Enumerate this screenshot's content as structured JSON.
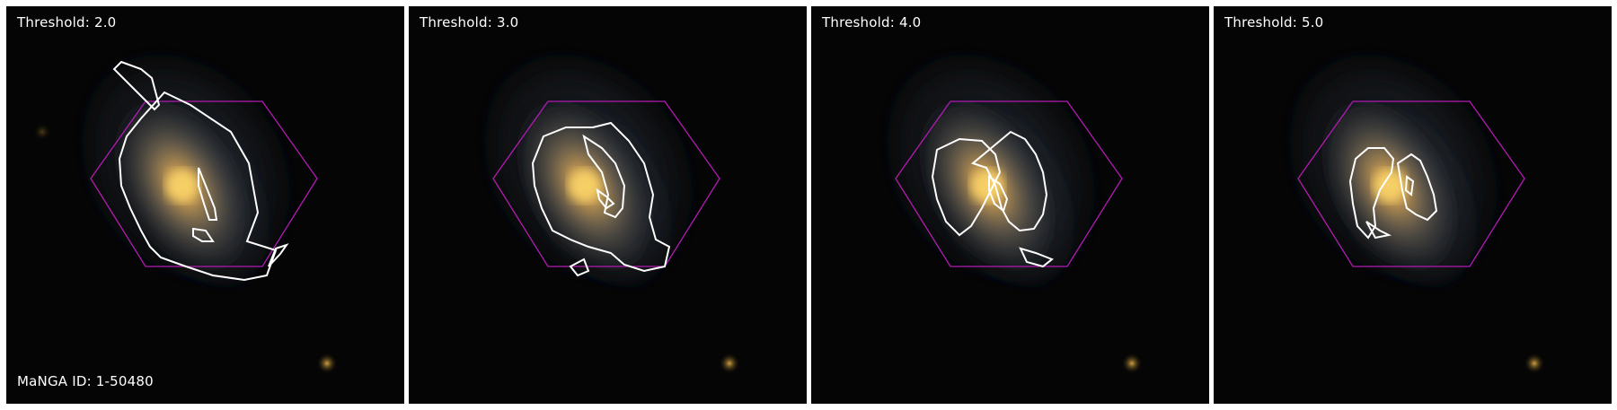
{
  "panels": [
    {
      "label": "Threshold: 2.0"
    },
    {
      "label": "Threshold: 3.0"
    },
    {
      "label": "Threshold: 4.0"
    },
    {
      "label": "Threshold: 5.0"
    }
  ],
  "galaxy_id_label": "MaNGA ID: 1-50480",
  "colors": {
    "background": "#000000",
    "hexagon": "#b31ab3",
    "contour": "#ffffff",
    "galaxy_core": "#e8b347"
  }
}
